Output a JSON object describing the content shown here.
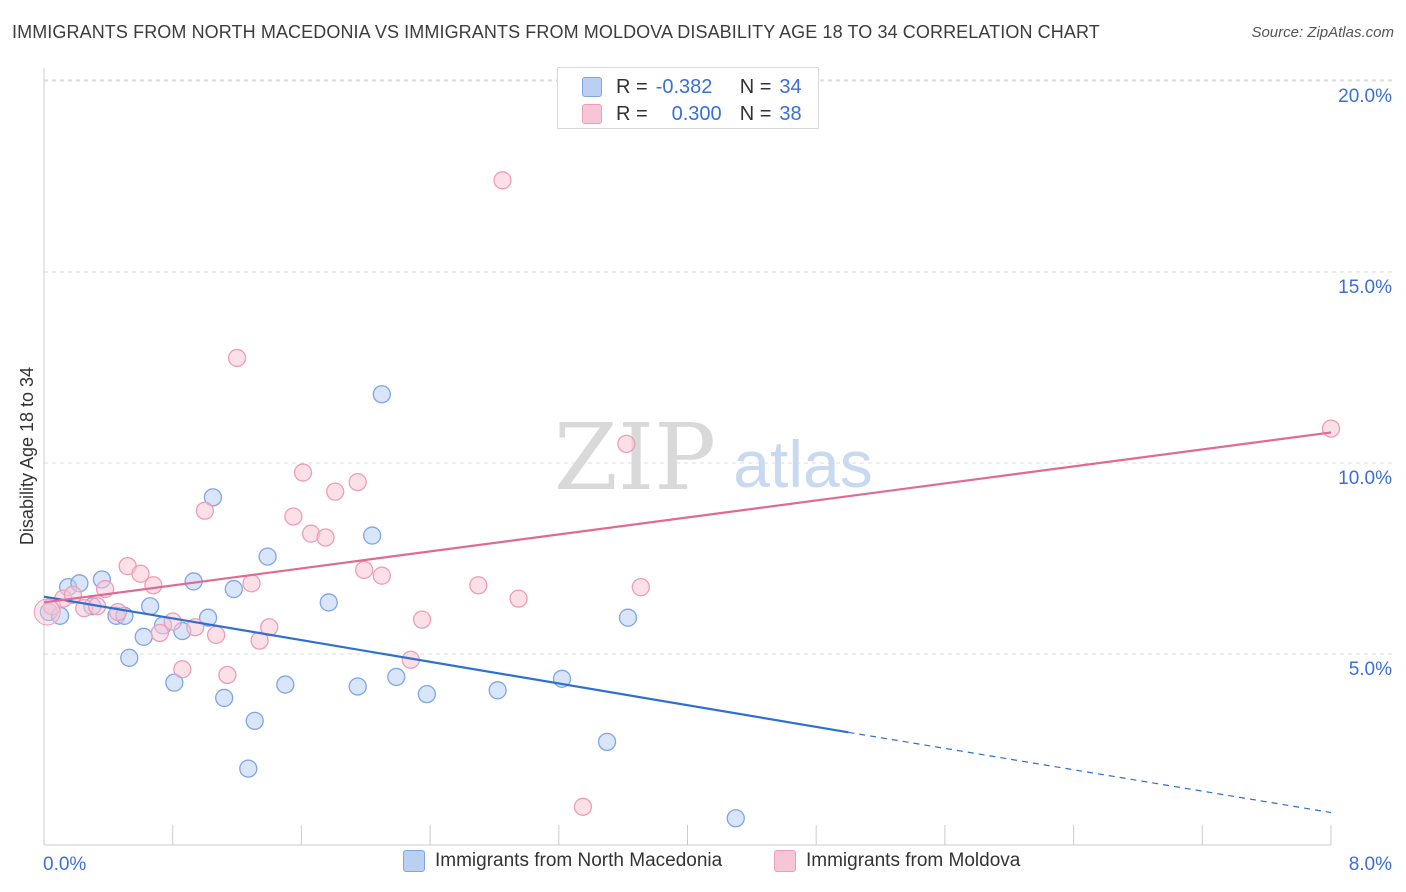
{
  "title": "IMMIGRANTS FROM NORTH MACEDONIA VS IMMIGRANTS FROM MOLDOVA DISABILITY AGE 18 TO 34 CORRELATION CHART",
  "source": "Source: ZipAtlas.com",
  "watermark": {
    "zip": "ZIP",
    "atlas": "atlas"
  },
  "legend": {
    "r_label": "R =",
    "n_label": "N =",
    "rows": [
      {
        "r": "-0.382",
        "n": "34"
      },
      {
        "r": "0.300",
        "n": "38"
      }
    ]
  },
  "colors": {
    "blue_fill": "#b9d0f3",
    "blue_stroke": "#7fa6e6",
    "blue_line": "#2f6fd1",
    "pink_fill": "#f7c6d6",
    "pink_stroke": "#ee9db8",
    "pink_line": "#e06a94",
    "axis_text": "#3b6fd6"
  },
  "chart_data": {
    "type": "scatter",
    "title": "IMMIGRANTS FROM NORTH MACEDONIA VS IMMIGRANTS FROM MOLDOVA DISABILITY AGE 18 TO 34 CORRELATION CHART",
    "xlabel": "",
    "ylabel": "Disability Age 18 to 34",
    "xlim": [
      0,
      8
    ],
    "ylim": [
      0,
      20
    ],
    "x_tick_labels": [
      "0.0%",
      "8.0%"
    ],
    "y_ticks": [
      5,
      10,
      15,
      20
    ],
    "y_tick_labels": [
      "5.0%",
      "10.0%",
      "15.0%",
      "20.0%"
    ],
    "grid": "horizontal dashed",
    "legend_position": "top-center",
    "series": [
      {
        "name": "Immigrants from North Macedonia",
        "color": "#7fa6e6",
        "r": -0.382,
        "n": 34,
        "trend": {
          "x_start": 0,
          "y_start": 6.5,
          "x_solid_end": 5.0,
          "y_solid_end": 2.95,
          "x_end": 8.0,
          "y_end": 0.85
        },
        "points": [
          [
            0.03,
            6.1
          ],
          [
            0.1,
            6.0
          ],
          [
            0.15,
            6.75
          ],
          [
            0.22,
            6.85
          ],
          [
            0.3,
            6.25
          ],
          [
            0.36,
            6.95
          ],
          [
            0.45,
            6.0
          ],
          [
            0.5,
            6.0
          ],
          [
            0.53,
            4.9
          ],
          [
            0.62,
            5.45
          ],
          [
            0.66,
            6.25
          ],
          [
            0.74,
            5.75
          ],
          [
            0.81,
            4.25
          ],
          [
            0.86,
            5.6
          ],
          [
            0.93,
            6.9
          ],
          [
            1.02,
            5.95
          ],
          [
            1.05,
            9.1
          ],
          [
            1.12,
            3.85
          ],
          [
            1.18,
            6.7
          ],
          [
            1.27,
            2.0
          ],
          [
            1.31,
            3.25
          ],
          [
            1.39,
            7.55
          ],
          [
            1.5,
            4.2
          ],
          [
            1.77,
            6.35
          ],
          [
            1.95,
            4.15
          ],
          [
            2.04,
            8.1
          ],
          [
            2.1,
            11.8
          ],
          [
            2.19,
            4.4
          ],
          [
            2.38,
            3.95
          ],
          [
            2.82,
            4.05
          ],
          [
            3.22,
            4.35
          ],
          [
            3.5,
            2.7
          ],
          [
            3.63,
            5.95
          ],
          [
            4.3,
            0.7
          ]
        ]
      },
      {
        "name": "Immigrants from Moldova",
        "color": "#ee9db8",
        "r": 0.3,
        "n": 38,
        "trend": {
          "x_start": 0,
          "y_start": 6.35,
          "x_end": 8.0,
          "y_end": 10.8
        },
        "points": [
          [
            0.05,
            6.25
          ],
          [
            0.12,
            6.45
          ],
          [
            0.18,
            6.55
          ],
          [
            0.25,
            6.2
          ],
          [
            0.33,
            6.25
          ],
          [
            0.38,
            6.7
          ],
          [
            0.46,
            6.1
          ],
          [
            0.52,
            7.3
          ],
          [
            0.6,
            7.1
          ],
          [
            0.68,
            6.8
          ],
          [
            0.72,
            5.55
          ],
          [
            0.8,
            5.85
          ],
          [
            0.86,
            4.6
          ],
          [
            0.94,
            5.7
          ],
          [
            1.0,
            8.75
          ],
          [
            1.07,
            5.5
          ],
          [
            1.14,
            4.45
          ],
          [
            1.2,
            12.75
          ],
          [
            1.29,
            6.85
          ],
          [
            1.34,
            5.35
          ],
          [
            1.4,
            5.7
          ],
          [
            1.55,
            8.6
          ],
          [
            1.61,
            9.75
          ],
          [
            1.66,
            8.15
          ],
          [
            1.75,
            8.05
          ],
          [
            1.81,
            9.25
          ],
          [
            1.95,
            9.5
          ],
          [
            1.99,
            7.2
          ],
          [
            2.1,
            7.05
          ],
          [
            2.28,
            4.85
          ],
          [
            2.35,
            5.9
          ],
          [
            2.7,
            6.8
          ],
          [
            2.85,
            17.4
          ],
          [
            2.95,
            6.45
          ],
          [
            3.35,
            1.0
          ],
          [
            3.62,
            10.5
          ],
          [
            3.71,
            6.75
          ],
          [
            8.0,
            10.9
          ]
        ]
      }
    ]
  }
}
